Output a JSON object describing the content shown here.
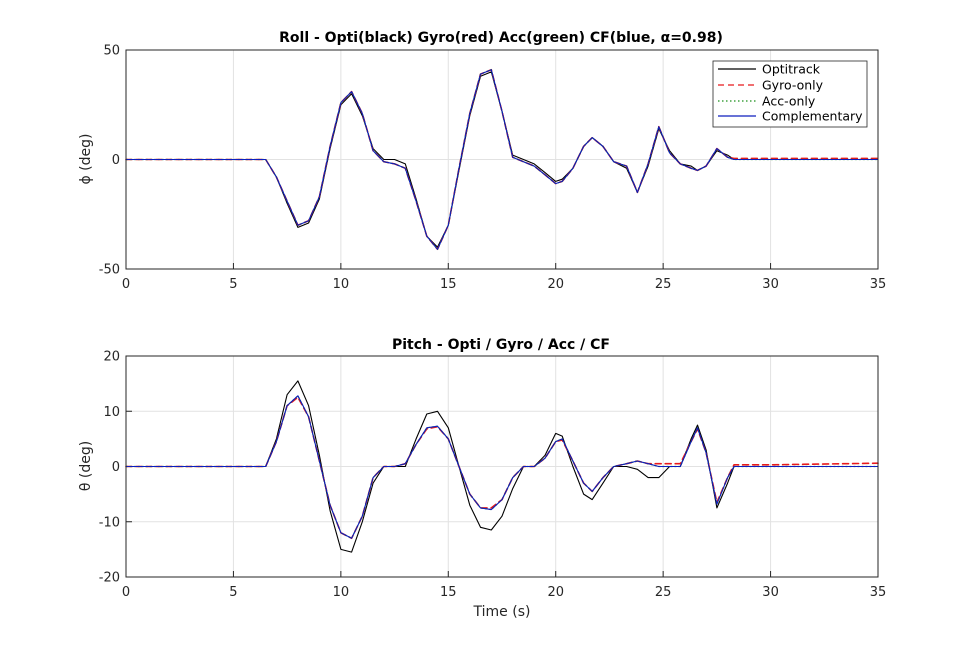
{
  "colors": {
    "background": "#ffffff",
    "grid": "#e2e2e2",
    "axis": "#262626",
    "optitrack": "#000000",
    "gyro": "#e8191c",
    "acc": "#1a8f1a",
    "cf": "#0d1dbd"
  },
  "chart_data": [
    {
      "type": "line",
      "title": "Roll - Opti(black)  Gyro(red)  Acc(green)  CF(blue, α=0.98)",
      "xlabel": "",
      "ylabel": "ϕ  (deg)",
      "xlim": [
        0,
        35
      ],
      "ylim": [
        -50,
        50
      ],
      "xticks": [
        0,
        5,
        10,
        15,
        20,
        25,
        30,
        35
      ],
      "yticks": [
        -50,
        0,
        50
      ],
      "grid": true,
      "legend": {
        "position": "top-right",
        "entries": [
          "Optitrack",
          "Gyro-only",
          "Acc-only",
          "Complementary"
        ]
      },
      "series": [
        {
          "name": "Optitrack",
          "style": "solid",
          "color": "#000000",
          "x": [
            0,
            6.5,
            7.0,
            7.5,
            8.0,
            8.5,
            9.0,
            9.5,
            10.0,
            10.5,
            11.0,
            11.5,
            12.0,
            12.5,
            13.0,
            13.5,
            14.0,
            14.5,
            15.0,
            15.5,
            16.0,
            16.5,
            17.0,
            17.5,
            18.0,
            18.5,
            19.0,
            19.5,
            20.0,
            20.3,
            20.8,
            21.3,
            21.7,
            22.2,
            22.7,
            23.3,
            23.8,
            24.3,
            24.8,
            25.3,
            25.8,
            26.3,
            26.6,
            27.0,
            27.5,
            28.0,
            28.3,
            30.0,
            35.0
          ],
          "y": [
            0,
            0,
            -8,
            -20,
            -31,
            -29,
            -18,
            5,
            25,
            30,
            20,
            5,
            0,
            0,
            -2,
            -18,
            -35,
            -40,
            -30,
            -5,
            20,
            38,
            40,
            22,
            2,
            0,
            -2,
            -6,
            -10,
            -9,
            -4,
            6,
            10,
            6,
            -1,
            -4,
            -15,
            -3,
            14,
            4,
            -2,
            -3,
            -5,
            -3,
            4,
            2,
            0,
            0,
            0
          ]
        },
        {
          "name": "Gyro-only",
          "style": "dashed",
          "color": "#e8191c",
          "x": [
            0,
            6.5,
            7.0,
            7.5,
            8.0,
            8.5,
            9.0,
            9.5,
            10.0,
            10.5,
            11.0,
            11.5,
            12.0,
            12.5,
            13.0,
            13.5,
            14.0,
            14.5,
            15.0,
            15.5,
            16.0,
            16.5,
            17.0,
            17.5,
            18.0,
            18.5,
            19.0,
            19.5,
            20.0,
            20.3,
            20.8,
            21.3,
            21.7,
            22.2,
            22.7,
            23.3,
            23.8,
            24.3,
            24.8,
            25.3,
            25.8,
            26.3,
            26.6,
            27.0,
            27.5,
            28.0,
            28.3,
            30.0,
            35.0
          ],
          "y": [
            0,
            0,
            -8,
            -19,
            -30,
            -28,
            -17,
            6,
            26,
            31,
            21,
            4,
            -1,
            -2,
            -4,
            -19,
            -35,
            -41,
            -30,
            -4,
            21,
            39,
            41,
            22,
            1,
            -1,
            -3,
            -7,
            -11,
            -10,
            -4,
            6,
            10,
            6,
            -1,
            -3,
            -15,
            -2,
            15,
            3,
            -2,
            -4,
            -5,
            -3,
            5,
            1,
            0.5,
            0.5,
            0.5
          ]
        },
        {
          "name": "Acc-only",
          "style": "dotted",
          "color": "#1a8f1a",
          "x": [
            0,
            6.5,
            7.0,
            7.5,
            8.0,
            8.5,
            9.0,
            9.5,
            10.0,
            10.5,
            11.0,
            11.5,
            12.0,
            12.5,
            13.0,
            13.5,
            14.0,
            14.5,
            15.0,
            15.5,
            16.0,
            16.5,
            17.0,
            17.5,
            18.0,
            18.5,
            19.0,
            19.5,
            20.0,
            20.3,
            20.8,
            21.3,
            21.7,
            22.2,
            22.7,
            23.3,
            23.8,
            24.3,
            24.8,
            25.3,
            25.8,
            26.3,
            26.6,
            27.0,
            27.5,
            28.0,
            28.3,
            30.0,
            35.0
          ],
          "y": [
            0,
            0,
            -8,
            -19,
            -30,
            -28,
            -17,
            6,
            26,
            31,
            21,
            4,
            -1,
            -2,
            -4,
            -19,
            -35,
            -41,
            -30,
            -4,
            21,
            39,
            41,
            22,
            1,
            -1,
            -3,
            -7,
            -11,
            -10,
            -4,
            6,
            10,
            6,
            -1,
            -3,
            -15,
            -2,
            15,
            3,
            -2,
            -4,
            -5,
            -3,
            5,
            1,
            0,
            0,
            0
          ]
        },
        {
          "name": "Complementary",
          "style": "solid",
          "color": "#0d1dbd",
          "x": [
            0,
            6.5,
            7.0,
            7.5,
            8.0,
            8.5,
            9.0,
            9.5,
            10.0,
            10.5,
            11.0,
            11.5,
            12.0,
            12.5,
            13.0,
            13.5,
            14.0,
            14.5,
            15.0,
            15.5,
            16.0,
            16.5,
            17.0,
            17.5,
            18.0,
            18.5,
            19.0,
            19.5,
            20.0,
            20.3,
            20.8,
            21.3,
            21.7,
            22.2,
            22.7,
            23.3,
            23.8,
            24.3,
            24.8,
            25.3,
            25.8,
            26.3,
            26.6,
            27.0,
            27.5,
            28.0,
            28.3,
            30.0,
            35.0
          ],
          "y": [
            0,
            0,
            -8,
            -19,
            -30,
            -28,
            -17,
            6,
            26,
            31,
            21,
            4,
            -1,
            -2,
            -4,
            -19,
            -35,
            -41,
            -30,
            -4,
            21,
            39,
            41,
            22,
            1,
            -1,
            -3,
            -7,
            -11,
            -10,
            -4,
            6,
            10,
            6,
            -1,
            -3,
            -15,
            -2,
            15,
            3,
            -2,
            -4,
            -5,
            -3,
            5,
            1,
            0,
            0,
            0
          ]
        }
      ]
    },
    {
      "type": "line",
      "title": "Pitch - Opti / Gyro / Acc / CF",
      "xlabel": "Time (s)",
      "ylabel": "θ  (deg)",
      "xlim": [
        0,
        35
      ],
      "ylim": [
        -20,
        20
      ],
      "xticks": [
        0,
        5,
        10,
        15,
        20,
        25,
        30,
        35
      ],
      "yticks": [
        -20,
        -10,
        0,
        10,
        20
      ],
      "grid": true,
      "series": [
        {
          "name": "Optitrack",
          "style": "solid",
          "color": "#000000",
          "x": [
            0,
            6.5,
            7.0,
            7.5,
            8.0,
            8.5,
            9.0,
            9.5,
            10.0,
            10.5,
            11.0,
            11.5,
            12.0,
            12.5,
            13.0,
            13.5,
            14.0,
            14.5,
            15.0,
            15.5,
            16.0,
            16.5,
            17.0,
            17.5,
            18.0,
            18.5,
            19.0,
            19.5,
            20.0,
            20.3,
            20.8,
            21.3,
            21.7,
            22.2,
            22.7,
            23.3,
            23.8,
            24.3,
            24.8,
            25.3,
            25.8,
            26.3,
            26.6,
            27.0,
            27.5,
            28.0,
            28.3,
            30.0,
            35.0
          ],
          "y": [
            0,
            0,
            5,
            13,
            15.5,
            11,
            2,
            -8,
            -15,
            -15.5,
            -10,
            -3,
            0,
            0,
            0,
            5,
            9.5,
            10,
            7,
            0,
            -7,
            -11,
            -11.5,
            -9,
            -4,
            0,
            0,
            2,
            6,
            5.5,
            0,
            -5,
            -6,
            -3,
            0,
            0,
            -0.5,
            -2,
            -2,
            0,
            0,
            5,
            7.5,
            3,
            -7.5,
            -3,
            0,
            0,
            0
          ]
        },
        {
          "name": "Gyro-only",
          "style": "dashed",
          "color": "#e8191c",
          "x": [
            0,
            6.5,
            7.0,
            7.5,
            8.0,
            8.5,
            9.0,
            9.5,
            10.0,
            10.5,
            11.0,
            11.5,
            12.0,
            12.5,
            13.0,
            13.5,
            14.0,
            14.5,
            15.0,
            15.5,
            16.0,
            16.5,
            17.0,
            17.5,
            18.0,
            18.5,
            19.0,
            19.5,
            20.0,
            20.3,
            20.8,
            21.3,
            21.7,
            22.2,
            22.7,
            23.3,
            23.8,
            24.3,
            24.8,
            25.3,
            25.8,
            26.3,
            26.6,
            27.0,
            27.5,
            28.0,
            28.3,
            30.0,
            35.0
          ],
          "y": [
            0,
            0,
            4.5,
            11,
            12.5,
            9,
            1,
            -7,
            -12,
            -13,
            -9,
            -2,
            0,
            0,
            0.5,
            4,
            6.8,
            7.2,
            5,
            0,
            -5,
            -7.5,
            -7.5,
            -6,
            -2,
            0,
            0,
            1.5,
            4.5,
            4.8,
            1,
            -3,
            -4.5,
            -2,
            0,
            0.5,
            1,
            0.5,
            0.5,
            0.5,
            0.5,
            4.5,
            6.8,
            2.5,
            -6.5,
            -2,
            0.3,
            0.3,
            0.6
          ]
        },
        {
          "name": "Acc-only",
          "style": "dotted",
          "color": "#1a8f1a",
          "x": [
            0,
            6.5,
            7.0,
            7.5,
            8.0,
            8.5,
            9.0,
            9.5,
            10.0,
            10.5,
            11.0,
            11.5,
            12.0,
            12.5,
            13.0,
            13.5,
            14.0,
            14.5,
            15.0,
            15.5,
            16.0,
            16.5,
            17.0,
            17.5,
            18.0,
            18.5,
            19.0,
            19.5,
            20.0,
            20.3,
            20.8,
            21.3,
            21.7,
            22.2,
            22.7,
            23.3,
            23.8,
            24.3,
            24.8,
            25.3,
            25.8,
            26.3,
            26.6,
            27.0,
            27.5,
            28.0,
            28.3,
            30.0,
            35.0
          ],
          "y": [
            0,
            0,
            4.5,
            11,
            12.8,
            9,
            1,
            -7,
            -12,
            -13,
            -9,
            -2,
            0,
            0,
            0.5,
            4,
            7,
            7.3,
            5,
            0,
            -5,
            -7.5,
            -7.8,
            -6,
            -2,
            0,
            0,
            1.5,
            4.5,
            5,
            1,
            -3,
            -4.5,
            -2,
            0,
            0.5,
            1,
            0.5,
            0,
            0,
            0,
            4.5,
            7,
            2.5,
            -6.8,
            -2,
            0,
            0,
            0
          ]
        },
        {
          "name": "Complementary",
          "style": "solid",
          "color": "#0d1dbd",
          "x": [
            0,
            6.5,
            7.0,
            7.5,
            8.0,
            8.5,
            9.0,
            9.5,
            10.0,
            10.5,
            11.0,
            11.5,
            12.0,
            12.5,
            13.0,
            13.5,
            14.0,
            14.5,
            15.0,
            15.5,
            16.0,
            16.5,
            17.0,
            17.5,
            18.0,
            18.5,
            19.0,
            19.5,
            20.0,
            20.3,
            20.8,
            21.3,
            21.7,
            22.2,
            22.7,
            23.3,
            23.8,
            24.3,
            24.8,
            25.3,
            25.8,
            26.3,
            26.6,
            27.0,
            27.5,
            28.0,
            28.3,
            30.0,
            35.0
          ],
          "y": [
            0,
            0,
            4.5,
            11,
            12.8,
            9,
            1,
            -7,
            -12,
            -13,
            -9,
            -2,
            0,
            0,
            0.5,
            4,
            7,
            7.3,
            5,
            0,
            -5,
            -7.5,
            -7.8,
            -6,
            -2,
            0,
            0,
            1.5,
            4.5,
            5,
            1,
            -3,
            -4.5,
            -2,
            0,
            0.5,
            1,
            0.5,
            0,
            0,
            0,
            4.5,
            7,
            2.5,
            -6.8,
            -2,
            0,
            0,
            0
          ]
        }
      ]
    }
  ]
}
